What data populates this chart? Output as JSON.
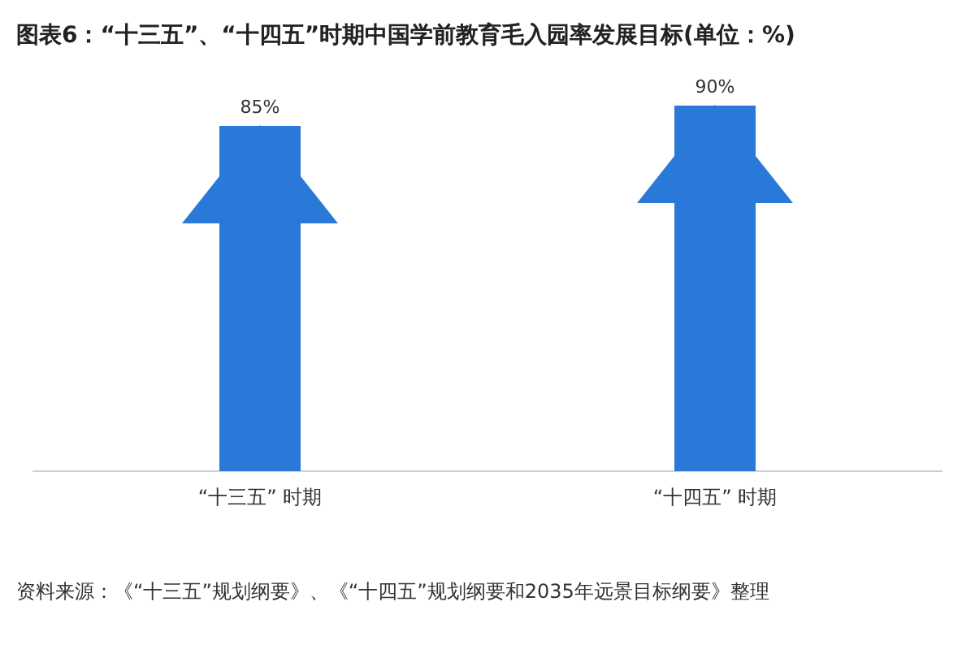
{
  "chart_data": {
    "type": "bar",
    "title": "图表6：“十三五”、“十四五”时期中国学前教育毛入园率发展目标(单位：%)",
    "categories": [
      "“十三五” 时期",
      "“十四五” 时期"
    ],
    "values": [
      85,
      90
    ],
    "value_labels": [
      "85%",
      "90%"
    ],
    "color": "#2a78d8",
    "annotations": [
      "资料来源：《“十三五”规划纲要》、《“十四五”规划纲要和2035年远景目标纲要》整理"
    ]
  }
}
